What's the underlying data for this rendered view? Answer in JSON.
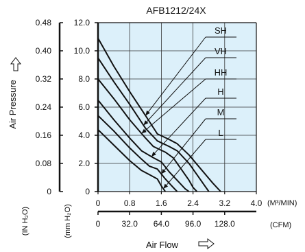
{
  "chart_data": {
    "type": "line",
    "title": "AFB1212/24X",
    "xlabel": "Air Flow",
    "ylabel": "Air Pressure",
    "x_unit_top": "(M³/MIN)",
    "x_unit_bottom": "(CFM)",
    "y_unit_left": "(IN H₂O)",
    "y_unit_right": "(mm H₂O)",
    "xlim": [
      0,
      4.0
    ],
    "ylim": [
      0,
      12.0
    ],
    "x_ticks": [
      "0",
      "0.8",
      "1.6",
      "2.4",
      "3.2",
      "4.0"
    ],
    "x_ticks_cfm": [
      "0",
      "32.0",
      "64.0",
      "96.0",
      "128.0"
    ],
    "y_ticks_mm": [
      "0",
      "2.0",
      "4.0",
      "6.0",
      "8.0",
      "10.0",
      "12.0"
    ],
    "y_ticks_in": [
      "0",
      "0.08",
      "0.16",
      "0.24",
      "0.32",
      "0.40",
      "0.48"
    ],
    "grid": true,
    "background_color": "#dcf0fa",
    "series": [
      {
        "name": "SH",
        "x": [
          0,
          0.4,
          0.8,
          1.2,
          1.5,
          1.8,
          2.0,
          2.3,
          2.6,
          2.9,
          3.0,
          3.1
        ],
        "y": [
          10.9,
          8.9,
          7.1,
          5.4,
          4.1,
          3.7,
          3.4,
          2.6,
          1.6,
          0.6,
          0.3,
          0
        ]
      },
      {
        "name": "VH",
        "x": [
          0,
          0.4,
          0.8,
          1.2,
          1.5,
          1.8,
          2.0,
          2.3,
          2.5,
          2.7,
          2.8
        ],
        "y": [
          9.5,
          7.8,
          6.2,
          4.5,
          3.6,
          3.2,
          2.9,
          2.0,
          1.2,
          0.4,
          0
        ]
      },
      {
        "name": "HH",
        "x": [
          0,
          0.4,
          0.8,
          1.2,
          1.4,
          1.7,
          1.9,
          2.1,
          2.3,
          2.4,
          2.5
        ],
        "y": [
          8.0,
          6.6,
          5.1,
          3.8,
          3.2,
          2.8,
          2.4,
          1.6,
          0.8,
          0.3,
          0
        ]
      },
      {
        "name": "H",
        "x": [
          0,
          0.4,
          0.8,
          1.1,
          1.4,
          1.6,
          1.8,
          2.0,
          2.2,
          2.3
        ],
        "y": [
          6.5,
          5.1,
          3.8,
          2.9,
          2.4,
          2.1,
          1.4,
          0.8,
          0.2,
          0
        ]
      },
      {
        "name": "M",
        "x": [
          0,
          0.4,
          0.8,
          1.1,
          1.3,
          1.5,
          1.7,
          1.9,
          2.0
        ],
        "y": [
          5.4,
          4.3,
          3.1,
          2.3,
          1.8,
          1.6,
          0.9,
          0.3,
          0
        ]
      },
      {
        "name": "L",
        "x": [
          0,
          0.4,
          0.8,
          1.1,
          1.3,
          1.5,
          1.6,
          1.7
        ],
        "y": [
          4.4,
          3.3,
          2.2,
          1.5,
          1.2,
          0.9,
          0.4,
          0
        ]
      }
    ]
  }
}
